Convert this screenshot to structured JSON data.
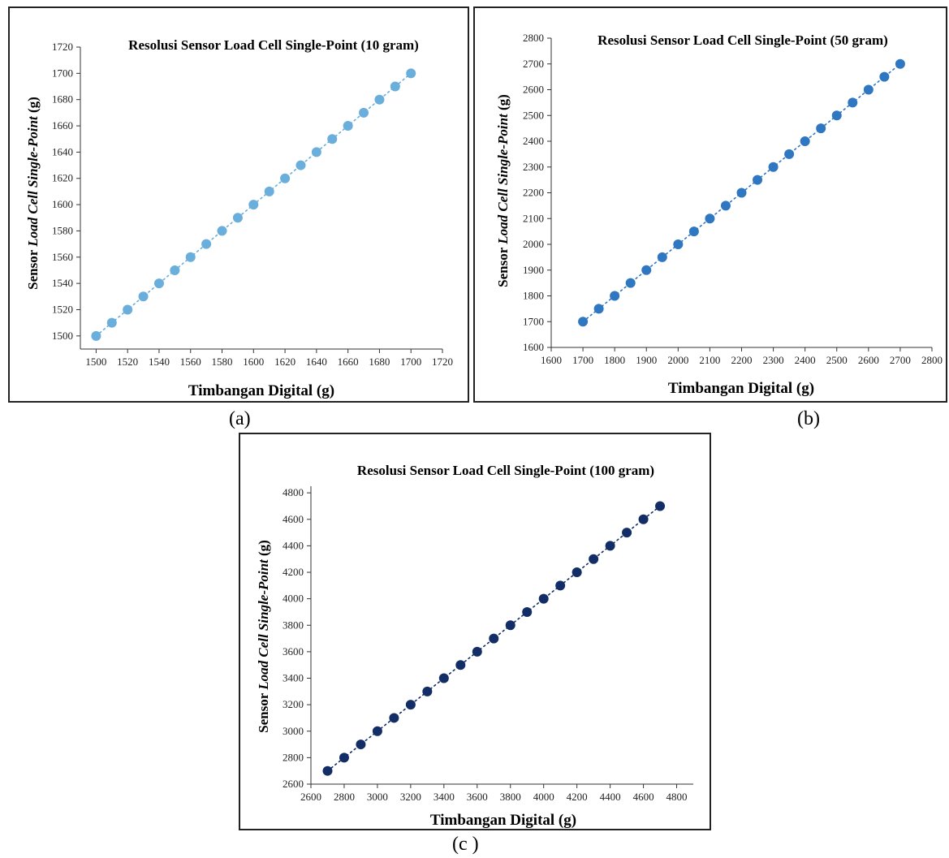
{
  "captions": [
    "(a)",
    "(b)",
    "(c )"
  ],
  "chart_data": [
    {
      "type": "scatter",
      "title": "Resolusi Sensor Load Cell Single-Point (10 gram)",
      "xlabel": "Timbangan Digital (g)",
      "ylabel_parts": [
        "Sensor ",
        "Load Cell Single-Point",
        " (g)"
      ],
      "xlim": [
        1490,
        1720
      ],
      "ylim": [
        1490,
        1720
      ],
      "xticks": [
        1500,
        1520,
        1540,
        1560,
        1580,
        1600,
        1620,
        1640,
        1660,
        1680,
        1700,
        1720
      ],
      "yticks": [
        1500,
        1520,
        1540,
        1560,
        1580,
        1600,
        1620,
        1640,
        1660,
        1680,
        1700,
        1720
      ],
      "grid": false,
      "trendline": "dotted",
      "color": "#6aaedb",
      "x": [
        1500,
        1510,
        1520,
        1530,
        1540,
        1550,
        1560,
        1570,
        1580,
        1590,
        1600,
        1610,
        1620,
        1630,
        1640,
        1650,
        1660,
        1670,
        1680,
        1690,
        1700
      ],
      "y": [
        1500,
        1510,
        1520,
        1530,
        1540,
        1550,
        1560,
        1570,
        1580,
        1590,
        1600,
        1610,
        1620,
        1630,
        1640,
        1650,
        1660,
        1670,
        1680,
        1690,
        1700
      ]
    },
    {
      "type": "scatter",
      "title": "Resolusi Sensor Load Cell Single-Point (50 gram)",
      "xlabel": "Timbangan Digital (g)",
      "ylabel_parts": [
        "Sensor ",
        "Load Cell Single-Point",
        " (g)"
      ],
      "xlim": [
        1600,
        2800
      ],
      "ylim": [
        1600,
        2800
      ],
      "xticks": [
        1600,
        1700,
        1800,
        1900,
        2000,
        2100,
        2200,
        2300,
        2400,
        2500,
        2600,
        2700,
        2800
      ],
      "yticks": [
        1600,
        1700,
        1800,
        1900,
        2000,
        2100,
        2200,
        2300,
        2400,
        2500,
        2600,
        2700,
        2800
      ],
      "grid": false,
      "trendline": "dotted",
      "color": "#2f77c0",
      "x": [
        1700,
        1750,
        1800,
        1850,
        1900,
        1950,
        2000,
        2050,
        2100,
        2150,
        2200,
        2250,
        2300,
        2350,
        2400,
        2450,
        2500,
        2550,
        2600,
        2650,
        2700
      ],
      "y": [
        1700,
        1750,
        1800,
        1850,
        1900,
        1950,
        2000,
        2050,
        2100,
        2150,
        2200,
        2250,
        2300,
        2350,
        2400,
        2450,
        2500,
        2550,
        2600,
        2650,
        2700
      ]
    },
    {
      "type": "scatter",
      "title": "Resolusi Sensor Load Cell Single-Point (100 gram)",
      "xlabel": "Timbangan Digital (g)",
      "ylabel_parts": [
        "Sensor ",
        "Load Cell Single-Point",
        " (g)"
      ],
      "xlim": [
        2600,
        4900
      ],
      "ylim": [
        2600,
        4850
      ],
      "xticks": [
        2600,
        2800,
        3000,
        3200,
        3400,
        3600,
        3800,
        4000,
        4200,
        4400,
        4600,
        4800
      ],
      "yticks": [
        2600,
        2800,
        3000,
        3200,
        3400,
        3600,
        3800,
        4000,
        4200,
        4400,
        4600,
        4800
      ],
      "grid": false,
      "trendline": "dotted",
      "color": "#132e66",
      "x": [
        2700,
        2800,
        2900,
        3000,
        3100,
        3200,
        3300,
        3400,
        3500,
        3600,
        3700,
        3800,
        3900,
        4000,
        4100,
        4200,
        4300,
        4400,
        4500,
        4600,
        4700
      ],
      "y": [
        2700,
        2800,
        2900,
        3000,
        3100,
        3200,
        3300,
        3400,
        3500,
        3600,
        3700,
        3800,
        3900,
        4000,
        4100,
        4200,
        4300,
        4400,
        4500,
        4600,
        4700
      ]
    }
  ]
}
